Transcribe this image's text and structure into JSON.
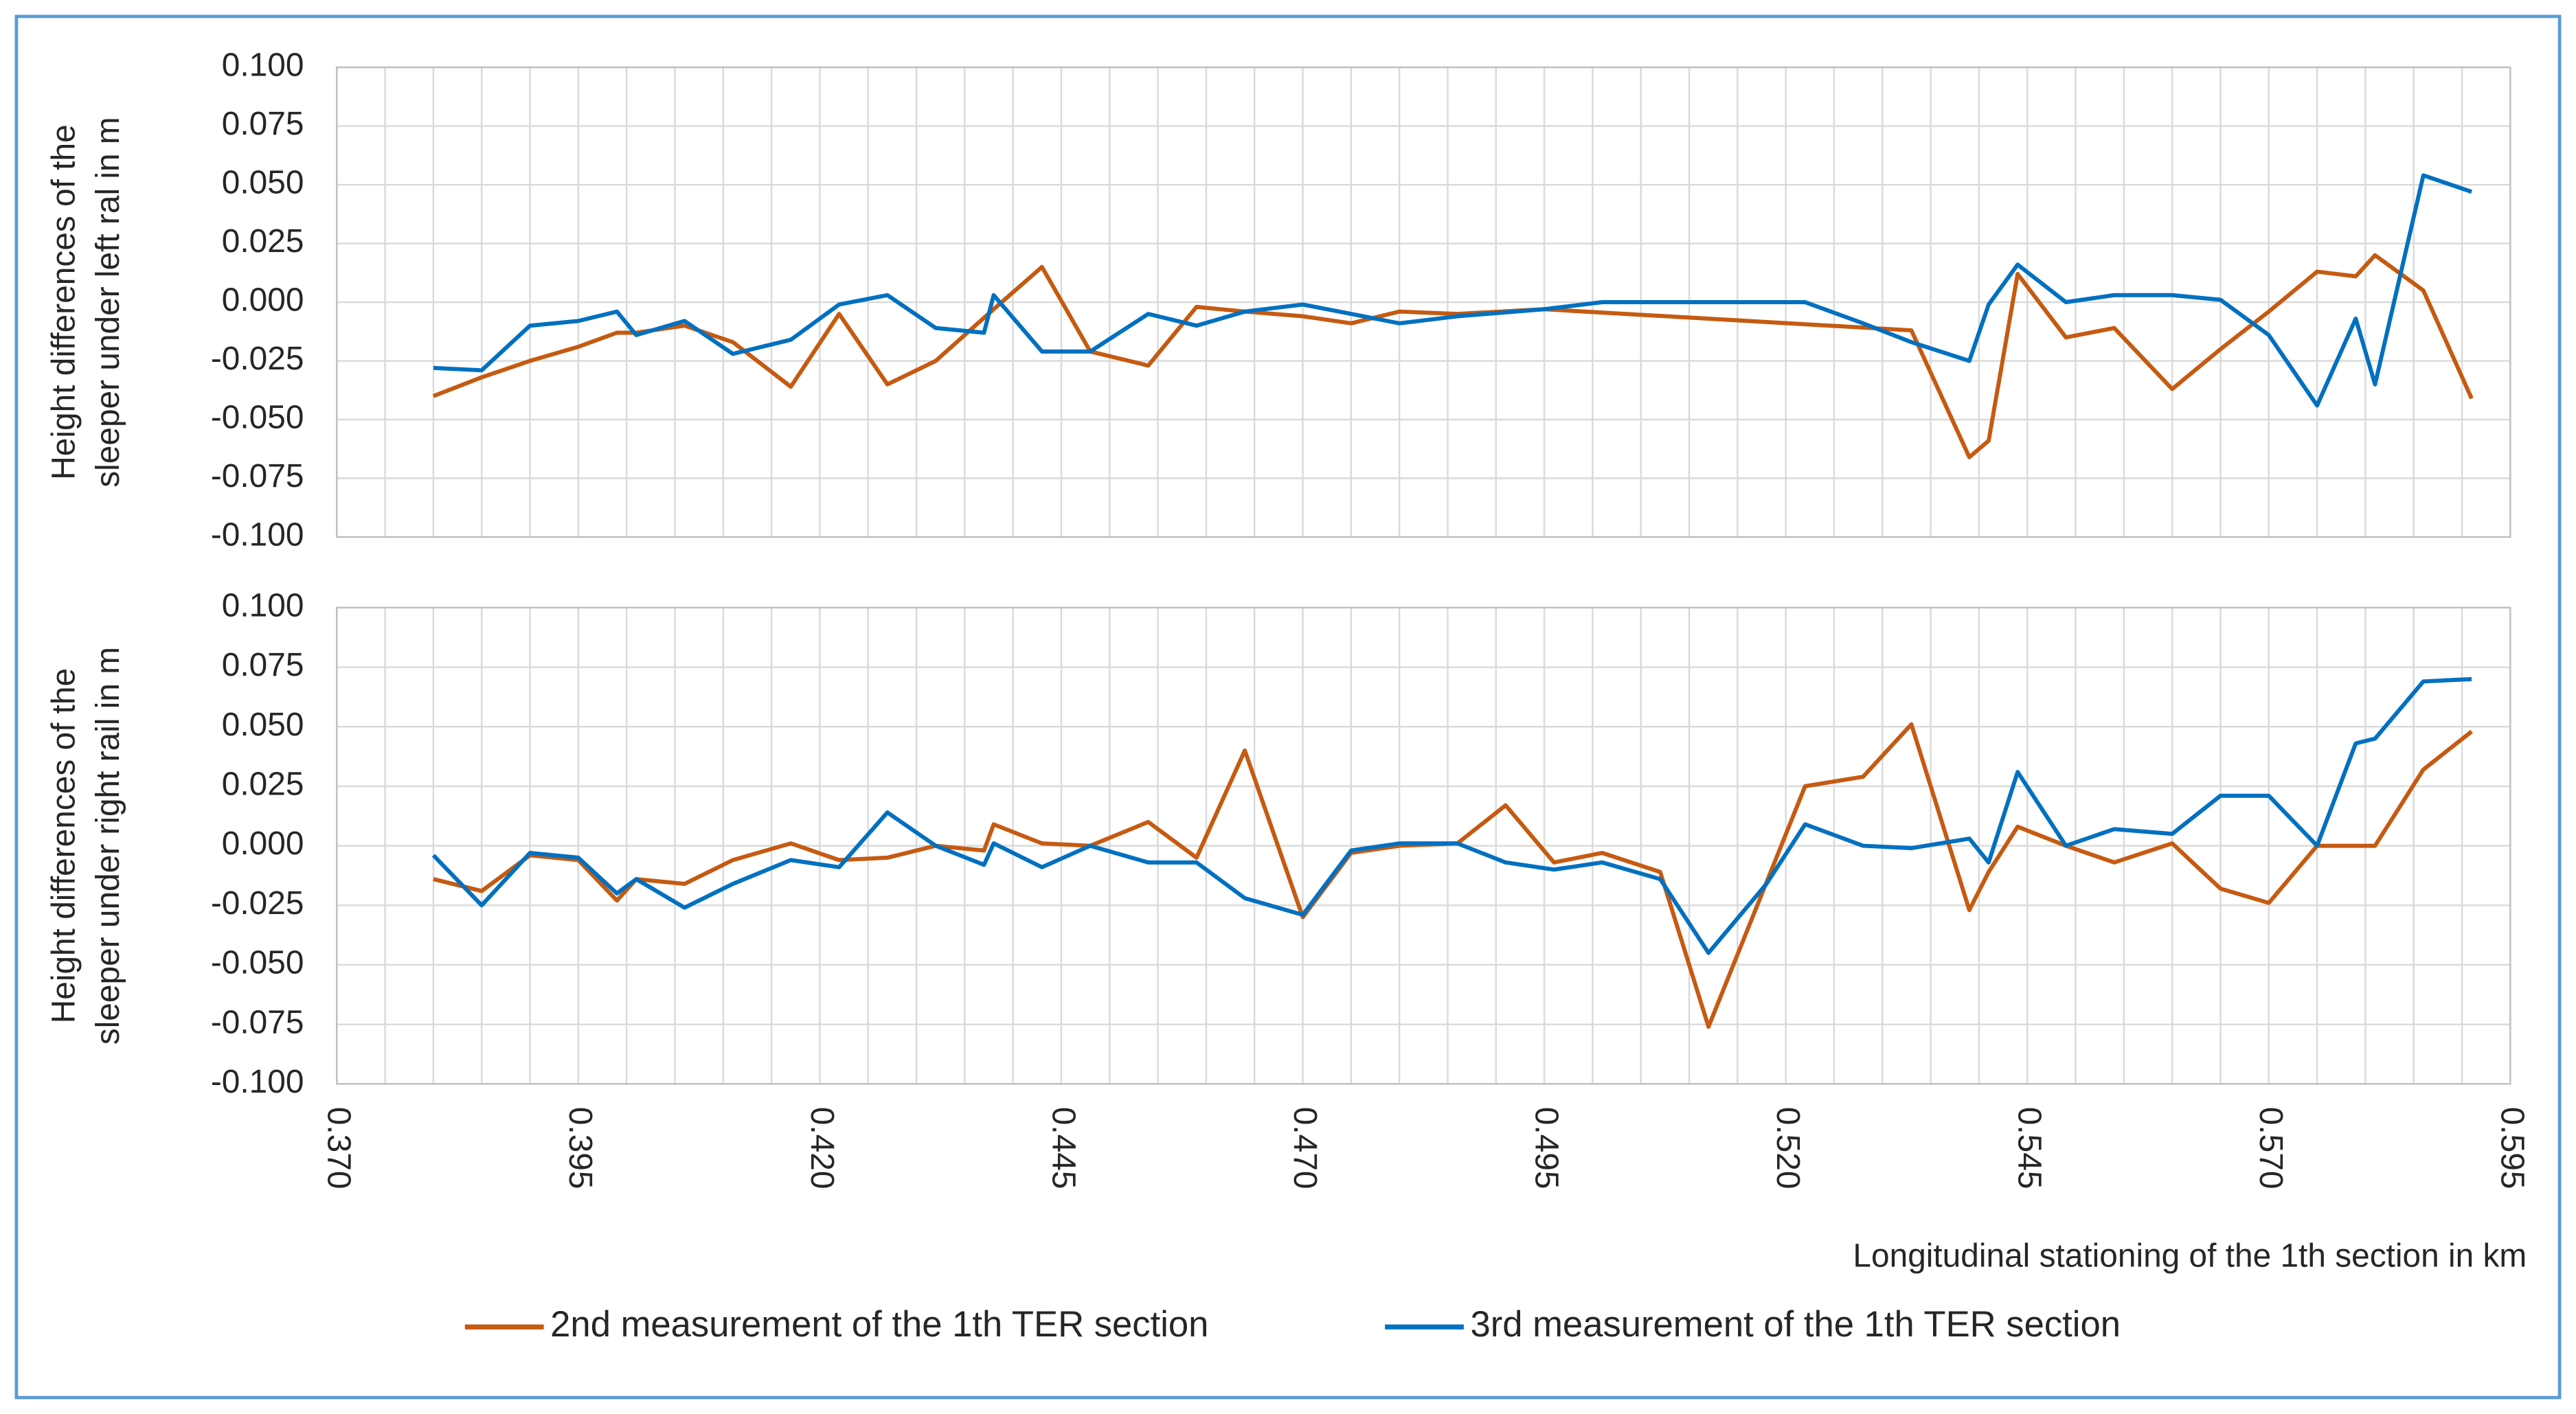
{
  "chart_data": [
    {
      "type": "line",
      "ylabel": [
        "Height differences of the",
        "sleeper under left ral in m"
      ],
      "xlim": [
        0.37,
        0.595
      ],
      "xgrid": [
        0.37,
        0.375,
        0.38,
        0.385,
        0.39,
        0.395,
        0.4,
        0.405,
        0.41,
        0.415,
        0.42,
        0.425,
        0.43,
        0.435,
        0.44,
        0.445,
        0.45,
        0.455,
        0.46,
        0.465,
        0.47,
        0.475,
        0.48,
        0.485,
        0.49,
        0.495,
        0.5,
        0.505,
        0.51,
        0.515,
        0.52,
        0.525,
        0.53,
        0.535,
        0.54,
        0.545,
        0.55,
        0.555,
        0.56,
        0.565,
        0.57,
        0.575,
        0.58,
        0.585,
        0.59,
        0.595
      ],
      "ylim": [
        -0.1,
        0.1
      ],
      "yticks": [
        {
          "value": -0.1,
          "label": "-0.100"
        },
        {
          "value": -0.075,
          "label": "-0.075"
        },
        {
          "value": -0.05,
          "label": "-0.050"
        },
        {
          "value": -0.025,
          "label": "-0.025"
        },
        {
          "value": 0,
          "label": "0.000"
        },
        {
          "value": 0.025,
          "label": "0.025"
        },
        {
          "value": 0.05,
          "label": "0.050"
        },
        {
          "value": 0.075,
          "label": "0.075"
        },
        {
          "value": 0.1,
          "label": "0.100"
        }
      ],
      "grid": true,
      "series": [
        {
          "color": "#c55a11",
          "x": [
            0.38,
            0.385,
            0.39,
            0.395,
            0.399,
            0.401,
            0.406,
            0.411,
            0.417,
            0.422,
            0.427,
            0.432,
            0.438,
            0.443,
            0.448,
            0.454,
            0.459,
            0.464,
            0.47,
            0.475,
            0.48,
            0.486,
            0.495,
            0.533,
            0.539,
            0.541,
            0.544,
            0.549,
            0.554,
            0.56,
            0.565,
            0.57,
            0.575,
            0.579,
            0.581,
            0.586,
            0.591
          ],
          "values": [
            -0.04,
            -0.032,
            -0.025,
            -0.019,
            -0.013,
            -0.013,
            -0.01,
            -0.017,
            -0.036,
            -0.005,
            -0.035,
            -0.025,
            -0.003,
            0.015,
            -0.021,
            -0.027,
            -0.002,
            -0.004,
            -0.006,
            -0.009,
            -0.004,
            -0.005,
            -0.003,
            -0.012,
            -0.066,
            -0.059,
            0.012,
            -0.015,
            -0.011,
            -0.037,
            -0.02,
            -0.004,
            0.013,
            0.011,
            0.02,
            0.005,
            -0.041
          ]
        },
        {
          "color": "#0070c0",
          "x": [
            0.38,
            0.385,
            0.39,
            0.395,
            0.399,
            0.401,
            0.406,
            0.411,
            0.417,
            0.422,
            0.427,
            0.432,
            0.437,
            0.438,
            0.443,
            0.448,
            0.454,
            0.459,
            0.464,
            0.47,
            0.475,
            0.48,
            0.486,
            0.495,
            0.501,
            0.522,
            0.528,
            0.533,
            0.539,
            0.541,
            0.544,
            0.549,
            0.554,
            0.56,
            0.565,
            0.57,
            0.575,
            0.579,
            0.581,
            0.586,
            0.591
          ],
          "values": [
            -0.028,
            -0.029,
            -0.01,
            -0.008,
            -0.004,
            -0.014,
            -0.008,
            -0.022,
            -0.016,
            -0.001,
            0.003,
            -0.011,
            -0.013,
            0.003,
            -0.021,
            -0.021,
            -0.005,
            -0.01,
            -0.004,
            -0.001,
            -0.005,
            -0.009,
            -0.006,
            -0.003,
            0.0,
            0.0,
            -0.009,
            -0.017,
            -0.025,
            -0.001,
            0.016,
            0.0,
            0.003,
            0.003,
            0.001,
            -0.014,
            -0.044,
            -0.007,
            -0.035,
            0.054,
            0.047
          ]
        }
      ]
    },
    {
      "type": "line",
      "ylabel": [
        "Height differences of the",
        "sleeper under right rail in m"
      ],
      "xlabel": "Longitudinal stationing of the 1th section in km",
      "xlim": [
        0.37,
        0.595
      ],
      "xgrid": [
        0.37,
        0.375,
        0.38,
        0.385,
        0.39,
        0.395,
        0.4,
        0.405,
        0.41,
        0.415,
        0.42,
        0.425,
        0.43,
        0.435,
        0.44,
        0.445,
        0.45,
        0.455,
        0.46,
        0.465,
        0.47,
        0.475,
        0.48,
        0.485,
        0.49,
        0.495,
        0.5,
        0.505,
        0.51,
        0.515,
        0.52,
        0.525,
        0.53,
        0.535,
        0.54,
        0.545,
        0.55,
        0.555,
        0.56,
        0.565,
        0.57,
        0.575,
        0.58,
        0.585,
        0.59,
        0.595
      ],
      "xticks": [
        {
          "value": 0.37,
          "label": "0.370"
        },
        {
          "value": 0.395,
          "label": "0.395"
        },
        {
          "value": 0.42,
          "label": "0.420"
        },
        {
          "value": 0.445,
          "label": "0.445"
        },
        {
          "value": 0.47,
          "label": "0.470"
        },
        {
          "value": 0.495,
          "label": "0.495"
        },
        {
          "value": 0.52,
          "label": "0.520"
        },
        {
          "value": 0.545,
          "label": "0.545"
        },
        {
          "value": 0.57,
          "label": "0.570"
        },
        {
          "value": 0.595,
          "label": "0.595"
        }
      ],
      "ylim": [
        -0.1,
        0.1
      ],
      "yticks": [
        {
          "value": -0.1,
          "label": "-0.100"
        },
        {
          "value": -0.075,
          "label": "-0.075"
        },
        {
          "value": -0.05,
          "label": "-0.050"
        },
        {
          "value": -0.025,
          "label": "-0.025"
        },
        {
          "value": 0,
          "label": "0.000"
        },
        {
          "value": 0.025,
          "label": "0.025"
        },
        {
          "value": 0.05,
          "label": "0.050"
        },
        {
          "value": 0.075,
          "label": "0.075"
        },
        {
          "value": 0.1,
          "label": "0.100"
        }
      ],
      "grid": true,
      "series": [
        {
          "name": "2nd measurement of the 1th TER section",
          "color": "#c55a11",
          "x": [
            0.38,
            0.385,
            0.39,
            0.395,
            0.399,
            0.401,
            0.406,
            0.411,
            0.417,
            0.422,
            0.427,
            0.432,
            0.437,
            0.438,
            0.443,
            0.448,
            0.454,
            0.459,
            0.464,
            0.47,
            0.475,
            0.48,
            0.486,
            0.491,
            0.496,
            0.501,
            0.507,
            0.512,
            0.522,
            0.528,
            0.533,
            0.539,
            0.541,
            0.544,
            0.549,
            0.554,
            0.56,
            0.565,
            0.57,
            0.575,
            0.581,
            0.586,
            0.591
          ],
          "values": [
            -0.014,
            -0.019,
            -0.004,
            -0.006,
            -0.023,
            -0.014,
            -0.016,
            -0.006,
            0.001,
            -0.006,
            -0.005,
            0.0,
            -0.002,
            0.009,
            0.001,
            0.0,
            0.01,
            -0.005,
            0.04,
            -0.03,
            -0.003,
            0.0,
            0.001,
            0.017,
            -0.007,
            -0.003,
            -0.011,
            -0.076,
            0.025,
            0.029,
            0.051,
            -0.027,
            -0.011,
            0.008,
            0.0,
            -0.007,
            0.001,
            -0.018,
            -0.024,
            0.0,
            0.0,
            0.032,
            0.048
          ]
        },
        {
          "name": "3rd measurement of the 1th TER section",
          "color": "#0070c0",
          "x": [
            0.38,
            0.385,
            0.39,
            0.395,
            0.399,
            0.401,
            0.406,
            0.411,
            0.417,
            0.422,
            0.427,
            0.432,
            0.437,
            0.438,
            0.443,
            0.448,
            0.454,
            0.459,
            0.464,
            0.47,
            0.475,
            0.48,
            0.486,
            0.491,
            0.496,
            0.501,
            0.507,
            0.512,
            0.518,
            0.522,
            0.528,
            0.533,
            0.539,
            0.541,
            0.544,
            0.549,
            0.554,
            0.56,
            0.565,
            0.57,
            0.575,
            0.579,
            0.581,
            0.586,
            0.591
          ],
          "values": [
            -0.004,
            -0.025,
            -0.003,
            -0.005,
            -0.02,
            -0.014,
            -0.026,
            -0.016,
            -0.006,
            -0.009,
            0.014,
            0.0,
            -0.008,
            0.001,
            -0.009,
            0.0,
            -0.007,
            -0.007,
            -0.022,
            -0.029,
            -0.002,
            0.001,
            0.001,
            -0.007,
            -0.01,
            -0.007,
            -0.014,
            -0.045,
            -0.016,
            0.009,
            0.0,
            -0.001,
            0.003,
            -0.007,
            0.031,
            0.0,
            0.007,
            0.005,
            0.021,
            0.021,
            0.0,
            0.043,
            0.045,
            0.069,
            0.07
          ]
        }
      ]
    }
  ]
}
